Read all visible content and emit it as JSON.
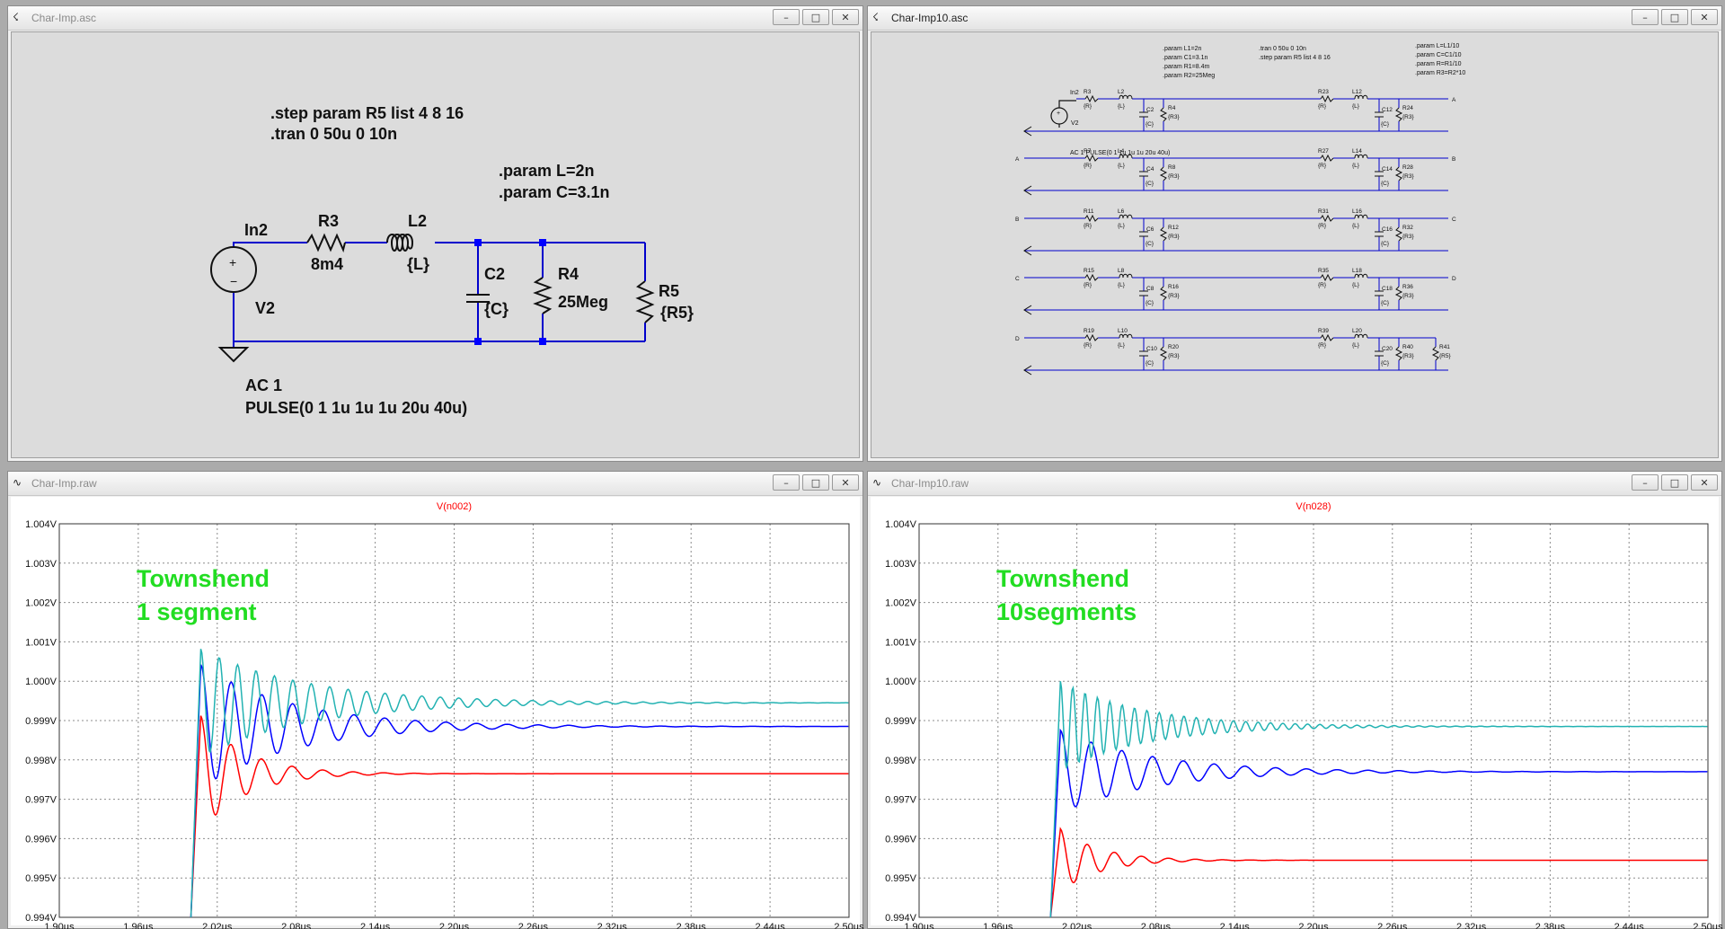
{
  "windows": {
    "sch1": {
      "title": "Char-Imp.asc"
    },
    "sch10": {
      "title": "Char-Imp10.asc"
    },
    "plot1": {
      "title": "Char-Imp.raw"
    },
    "plot10": {
      "title": "Char-Imp10.raw"
    }
  },
  "window_buttons": {
    "minimize": "–",
    "maximize": "□",
    "close": "✕"
  },
  "schematic1": {
    "directive_step": ".step param R5 list  4 8 16",
    "directive_tran": ".tran 0 50u 0 10n",
    "param_L": ".param L=2n",
    "param_C": ".param C=3.1n",
    "in_label": "In2",
    "r3_name": "R3",
    "r3_value": "8m4",
    "l2_name": "L2",
    "l2_value": "{L}",
    "c2_name": "C2",
    "c2_value": "{C}",
    "r4_name": "R4",
    "r4_value": "25Meg",
    "r5_name": "R5",
    "r5_value": "{R5}",
    "v2_name": "V2",
    "ac_label": "AC 1",
    "pulse_label": "PULSE(0 1 1u 1u 1u 20u 40u)"
  },
  "schematic10": {
    "params_a": [
      ".param L1=2n",
      ".param C1=3.1n",
      ".param R1=8.4m",
      ".param R2=25Meg"
    ],
    "tran": ".tran 0 50u 0 10n",
    "step": ".step param R5 list 4 8 16",
    "params_b": [
      ".param L=L1/10",
      ".param C=C1/10",
      ".param R=R1/10",
      ".param R3=R2*10"
    ],
    "in_label": "In2",
    "v_label": "V2",
    "ac_pulse": "AC 1    PULSE(0 1 1u 1u 1u 20u 40u)",
    "rows": [
      {
        "in": "",
        "out": "A",
        "ra": "R3",
        "la": "L2",
        "ca": "C2",
        "pa": "R4",
        "rb": "R23",
        "lb": "L12",
        "cb": "C12",
        "pb": "R24"
      },
      {
        "in": "A",
        "out": "B",
        "ra": "R7",
        "la": "L4",
        "ca": "C4",
        "pa": "R8",
        "rb": "R27",
        "lb": "L14",
        "cb": "C14",
        "pb": "R28"
      },
      {
        "in": "B",
        "out": "C",
        "ra": "R11",
        "la": "L6",
        "ca": "C6",
        "pa": "R12",
        "rb": "R31",
        "lb": "L16",
        "cb": "C16",
        "pb": "R32"
      },
      {
        "in": "C",
        "out": "D",
        "ra": "R15",
        "la": "L8",
        "ca": "C8",
        "pa": "R16",
        "rb": "R35",
        "lb": "L18",
        "cb": "C18",
        "pb": "R36"
      },
      {
        "in": "D",
        "out": "",
        "ra": "R19",
        "la": "L10",
        "ca": "C10",
        "pa": "R20",
        "rb": "R39",
        "lb": "L20",
        "cb": "C20",
        "pb": "R40"
      }
    ],
    "val_r": "{R}",
    "val_l": "{L}",
    "val_c": "{C}",
    "val_p": "{R3}",
    "r41_name": "R41",
    "r41_value": "{R5}"
  },
  "colors": {
    "wire": "#0000cc",
    "junction": "#0000ff",
    "red": "#ff0000",
    "blue": "#0000ff",
    "teal": "#22b2b2",
    "annotation": "#22dd22",
    "trace_title": "#ff0000",
    "grid": "#8c8c8c"
  },
  "chart_data": [
    {
      "type": "line",
      "title": "V(n002)",
      "annotation": [
        "Townshend",
        " 1 segment"
      ],
      "x_ticks": [
        "1.90µs",
        "1.96µs",
        "2.02µs",
        "2.08µs",
        "2.14µs",
        "2.20µs",
        "2.26µs",
        "2.32µs",
        "2.38µs",
        "2.44µs",
        "2.50µs"
      ],
      "y_ticks": [
        "1.004V",
        "1.003V",
        "1.002V",
        "1.001V",
        "1.000V",
        "0.999V",
        "0.998V",
        "0.997V",
        "0.996V",
        "0.995V",
        "0.994V"
      ],
      "xlim": [
        1.9,
        2.5
      ],
      "ylim": [
        0.994,
        1.004
      ],
      "x_unit": "µs",
      "y_unit": "V",
      "step_time": 2.0,
      "series": [
        {
          "color": "#ff0000",
          "peak": 0.99912,
          "final": 0.99765,
          "period": 0.0232,
          "decay": 0.0338
        },
        {
          "color": "#0000ff",
          "peak": 1.00042,
          "final": 0.99885,
          "period": 0.0233,
          "decay": 0.07
        },
        {
          "color": "#22b2b2",
          "peak": 1.00082,
          "final": 0.99945,
          "period": 0.014,
          "decay": 0.0813
        }
      ]
    },
    {
      "type": "line",
      "title": "V(n028)",
      "annotation": [
        "Townshend",
        "10segments"
      ],
      "x_ticks": [
        "1.90µs",
        "1.96µs",
        "2.02µs",
        "2.08µs",
        "2.14µs",
        "2.20µs",
        "2.26µs",
        "2.32µs",
        "2.38µs",
        "2.44µs",
        "2.50µs"
      ],
      "y_ticks": [
        "1.004V",
        "1.003V",
        "1.002V",
        "1.001V",
        "1.000V",
        "0.999V",
        "0.998V",
        "0.997V",
        "0.996V",
        "0.995V",
        "0.994V"
      ],
      "xlim": [
        1.9,
        2.5
      ],
      "ylim": [
        0.994,
        1.004
      ],
      "x_unit": "µs",
      "y_unit": "V",
      "step_time": 2.0,
      "series": [
        {
          "color": "#ff0000",
          "peak": 0.99625,
          "final": 0.99545,
          "period": 0.0206,
          "decay": 0.03
        },
        {
          "color": "#0000ff",
          "peak": 0.99875,
          "final": 0.9977,
          "period": 0.0234,
          "decay": 0.07
        },
        {
          "color": "#22b2b2",
          "peak": 1.0,
          "final": 0.99885,
          "period": 0.0094,
          "decay": 0.0636
        }
      ]
    }
  ]
}
